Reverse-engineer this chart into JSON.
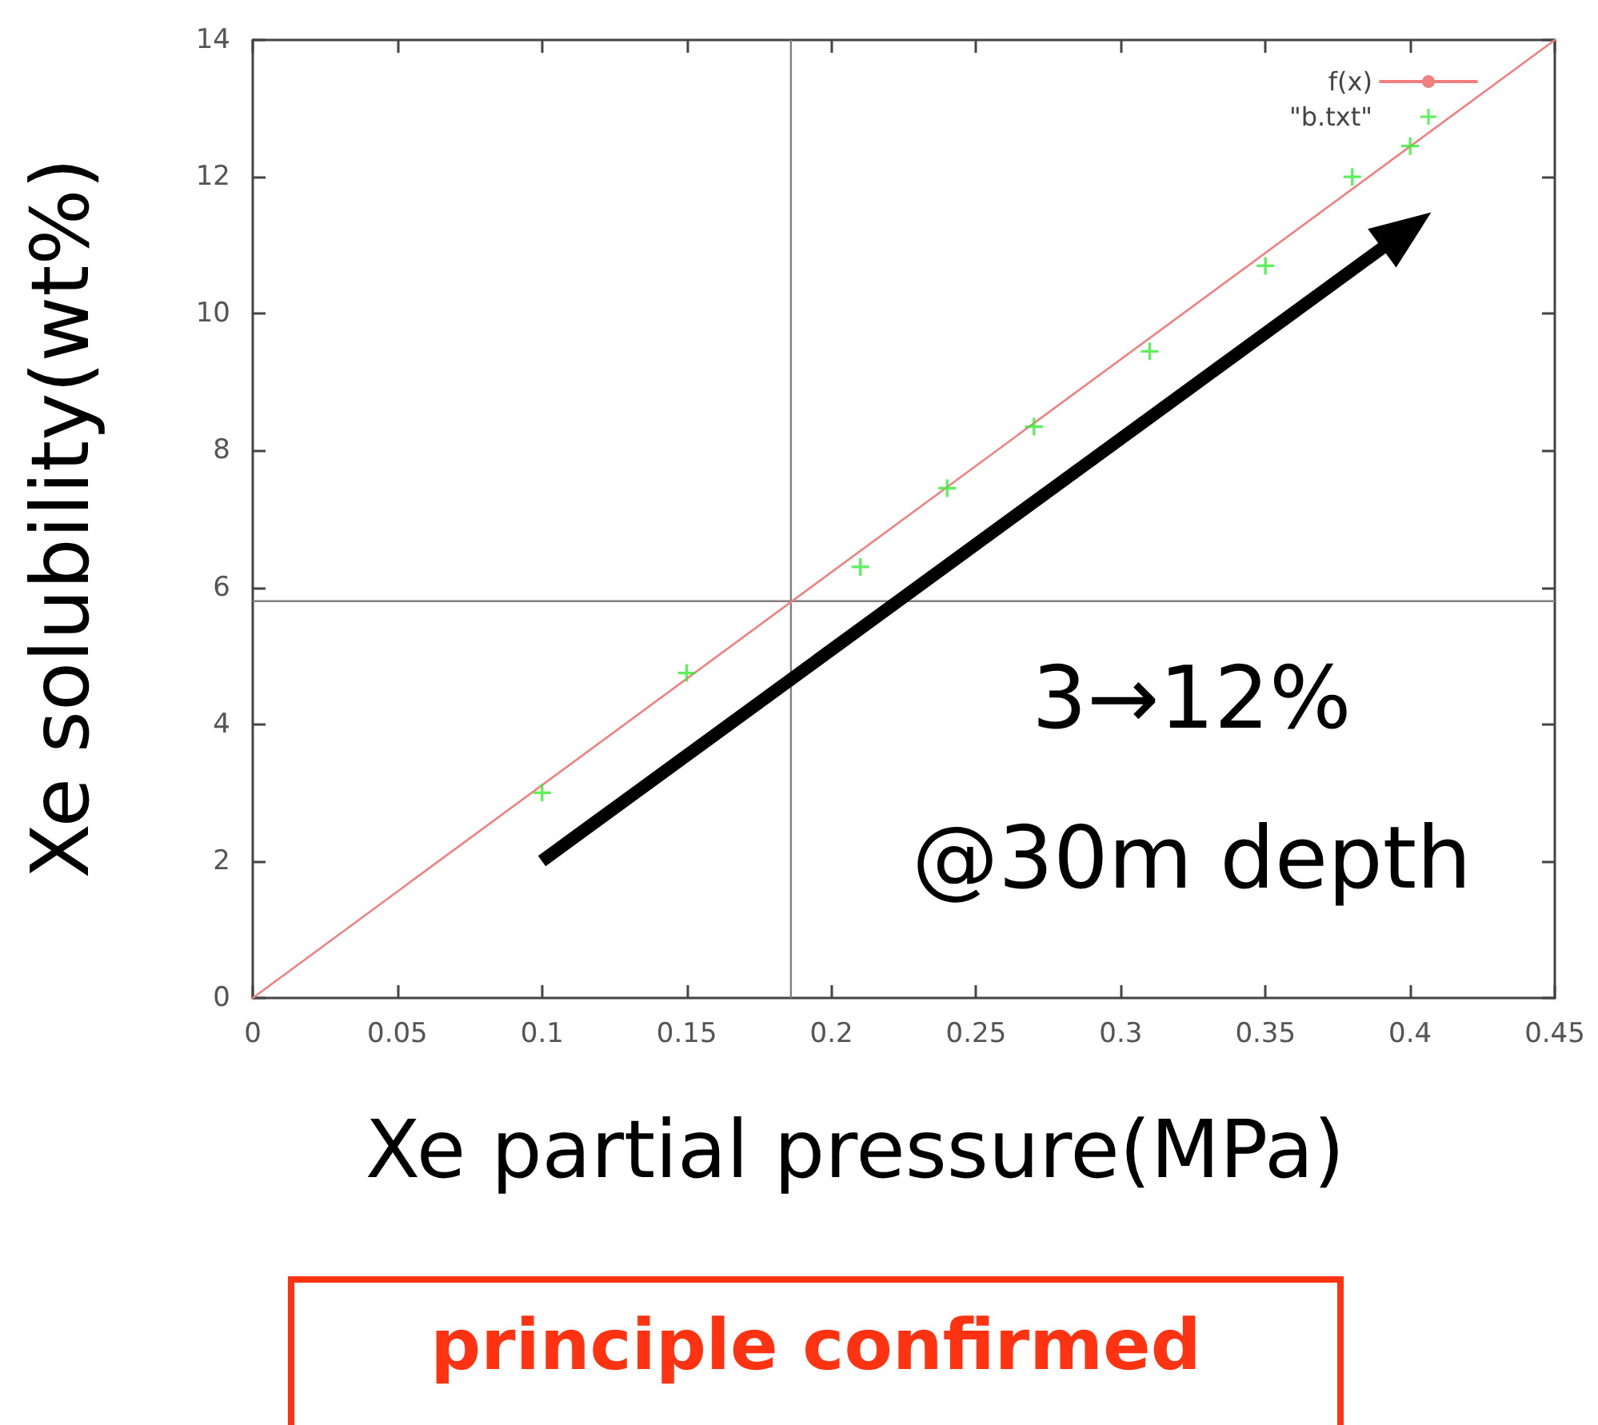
{
  "chart_data": {
    "type": "scatter",
    "xlabel": "Xe partial pressure(MPa)",
    "ylabel": "Xe solubility(wt%)",
    "xlim": [
      0,
      0.45
    ],
    "xticks": [
      0,
      0.05,
      0.1,
      0.15,
      0.2,
      0.25,
      0.3,
      0.35,
      0.4,
      0.45
    ],
    "ylim": [
      0,
      14
    ],
    "yticks": [
      0,
      2,
      4,
      6,
      8,
      10,
      12,
      14
    ],
    "grid": false,
    "legend": "top right",
    "series": [
      {
        "name": "f(x)",
        "type": "line",
        "marker": "none",
        "color": "#f08080",
        "x": [
          0,
          0.45
        ],
        "values": [
          0,
          14
        ]
      },
      {
        "name": "\"b.txt\"",
        "marker": "cross",
        "color": "#33ee33",
        "x": [
          0.1,
          0.15,
          0.21,
          0.24,
          0.27,
          0.31,
          0.35,
          0.38,
          0.4
        ],
        "values": [
          3.0,
          4.75,
          6.3,
          7.45,
          8.35,
          9.45,
          10.7,
          12.0,
          12.45
        ]
      }
    ],
    "ref_lines": [
      {
        "axis": "x",
        "value": 0.186,
        "color": "#808080"
      },
      {
        "axis": "y",
        "value": 5.8,
        "color": "#808080"
      }
    ],
    "annotations": [
      "3→12%",
      "@30m depth",
      "principle confirmed"
    ]
  }
}
